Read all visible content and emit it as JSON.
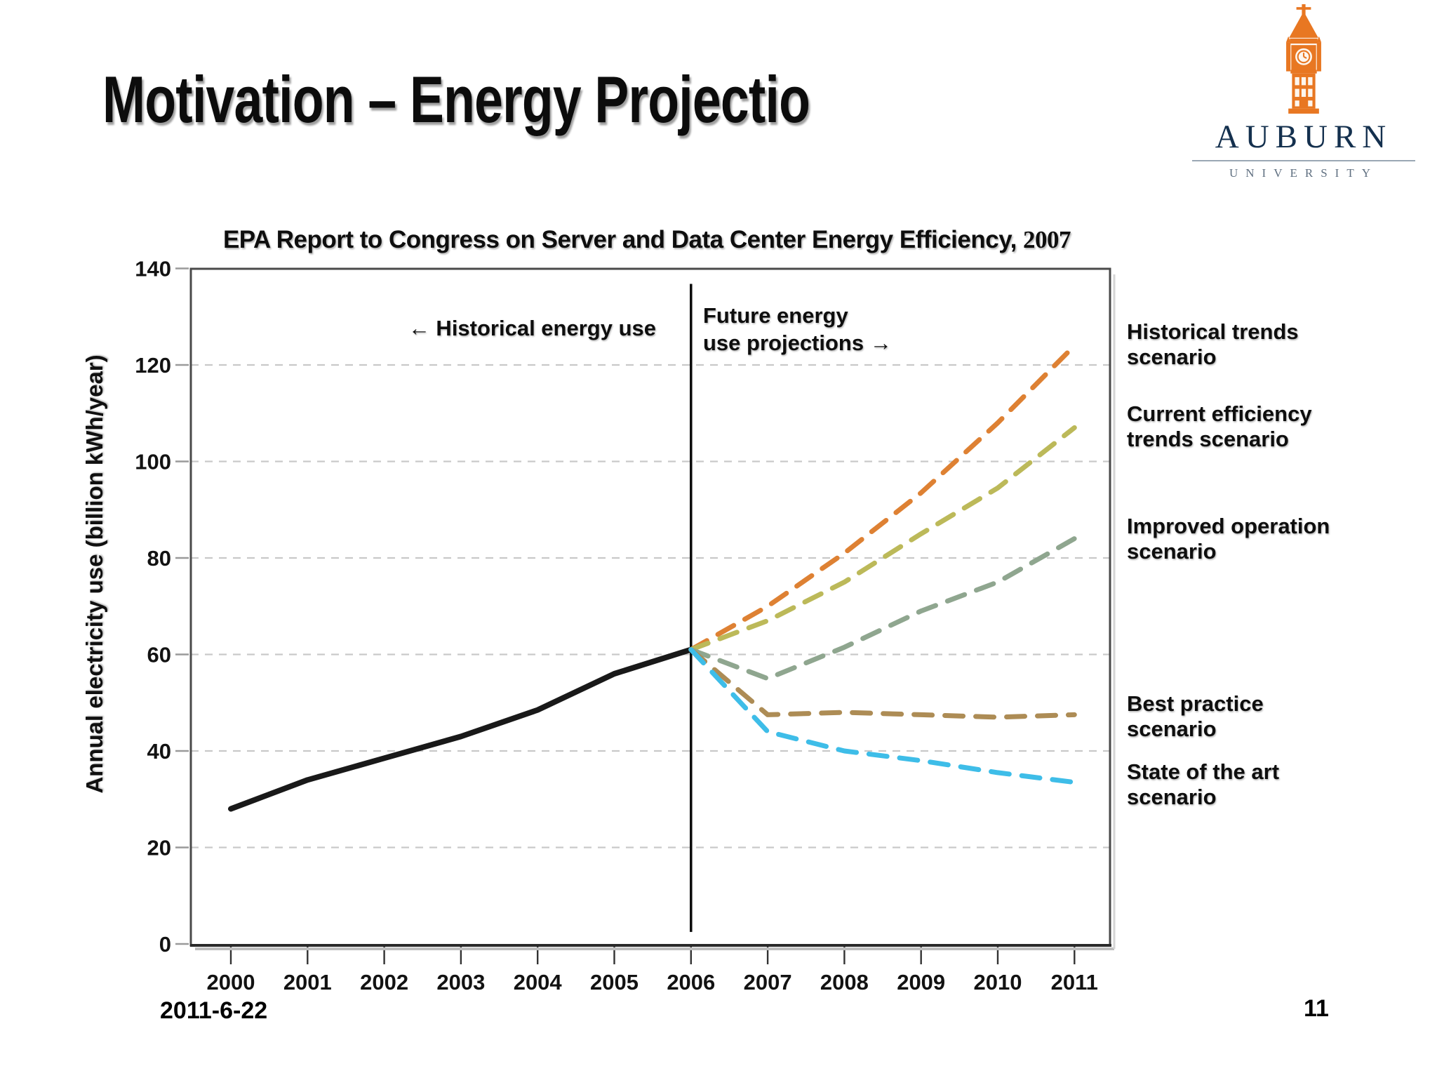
{
  "slide": {
    "title": "Motivation – Energy Projectio",
    "date": "2011-6-22",
    "page_number": "11"
  },
  "logo": {
    "wordmark": "AUBURN",
    "sub_wordmark": "UNIVERSITY",
    "tower_icon": "clock-tower-icon",
    "orange": "#E87722",
    "navy": "#14304e",
    "gray": "#5f6f80"
  },
  "chart_data": {
    "type": "line",
    "title_main": "EPA Report to Congress on Server and Data Center Energy Efficiency,",
    "title_year": "2007",
    "ylabel": "Annual electricity use (billion kWh/year)",
    "xlabel": "",
    "ylim": [
      0,
      140
    ],
    "yticks": [
      0,
      20,
      40,
      60,
      80,
      100,
      120,
      140
    ],
    "xticks": [
      2000,
      2001,
      2002,
      2003,
      2004,
      2005,
      2006,
      2007,
      2008,
      2009,
      2010,
      2011
    ],
    "grid": "horizontal-dashed",
    "legend_position": "right-outside",
    "divider_year": 2006,
    "annotations": {
      "historical": "← Historical energy use",
      "future_line1": "Future energy",
      "future_line2": "use projections →"
    },
    "series": [
      {
        "name": "Historical energy use",
        "slug": "historical",
        "color": "#191919",
        "style": "solid",
        "x": [
          2000,
          2001,
          2002,
          2003,
          2004,
          2005,
          2006
        ],
        "values": [
          28,
          34,
          38.5,
          43,
          48.5,
          56,
          61
        ],
        "legend": false
      },
      {
        "name": "Historical trends scenario",
        "slug": "historical-trends",
        "color": "#DE8133",
        "style": "dashed",
        "x": [
          2006,
          2007,
          2008,
          2009,
          2010,
          2011
        ],
        "values": [
          61,
          70,
          81,
          93.5,
          108,
          124
        ],
        "legend": true
      },
      {
        "name": "Current efficiency trends scenario",
        "slug": "current-efficiency-trends",
        "color": "#BCB959",
        "style": "dashed",
        "x": [
          2006,
          2007,
          2008,
          2009,
          2010,
          2011
        ],
        "values": [
          61,
          67,
          75,
          85,
          94.5,
          107
        ],
        "legend": true
      },
      {
        "name": "Improved operation scenario",
        "slug": "improved-operation",
        "color": "#8FA68F",
        "style": "dashed",
        "x": [
          2006,
          2007,
          2008,
          2009,
          2010,
          2011
        ],
        "values": [
          61,
          55,
          61.5,
          69,
          75,
          84
        ],
        "legend": true
      },
      {
        "name": "Best practice scenario",
        "slug": "best-practice",
        "color": "#AD8C55",
        "style": "dashed",
        "x": [
          2006,
          2007,
          2008,
          2009,
          2010,
          2011
        ],
        "values": [
          61,
          47.5,
          48,
          47.5,
          47,
          47.5
        ],
        "legend": true
      },
      {
        "name": "State of the art scenario",
        "slug": "state-of-the-art",
        "color": "#3EBDE8",
        "style": "dashed",
        "x": [
          2006,
          2007,
          2008,
          2009,
          2010,
          2011
        ],
        "values": [
          61,
          44,
          40,
          38,
          35.5,
          33.5
        ],
        "legend": true
      }
    ]
  }
}
